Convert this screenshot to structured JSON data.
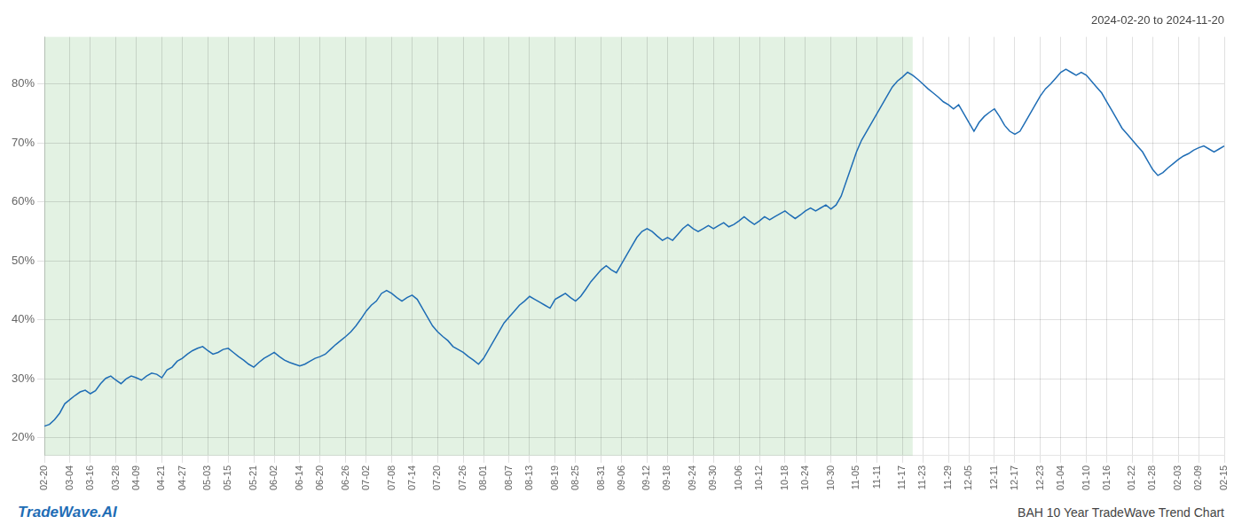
{
  "chart_data": {
    "type": "line",
    "title": "2024-02-20 to 2024-11-20",
    "annotations": [
      "TradeWave.AI",
      "BAH 10 Year TradeWave Trend Chart"
    ],
    "categories": [
      "02-20",
      null,
      null,
      null,
      null,
      "03-04",
      null,
      null,
      null,
      "03-16",
      null,
      null,
      null,
      null,
      "03-28",
      null,
      null,
      null,
      "04-09",
      null,
      null,
      null,
      null,
      "04-21",
      null,
      null,
      null,
      "04-27",
      null,
      null,
      null,
      null,
      "05-03",
      null,
      null,
      null,
      "05-15",
      null,
      null,
      null,
      null,
      "05-21",
      null,
      null,
      null,
      "06-02",
      null,
      null,
      null,
      null,
      "06-14",
      null,
      null,
      null,
      "06-20",
      null,
      null,
      null,
      null,
      "06-26",
      null,
      null,
      null,
      "07-02",
      null,
      null,
      null,
      null,
      "07-08",
      null,
      null,
      null,
      "07-14",
      null,
      null,
      null,
      null,
      "07-20",
      null,
      null,
      null,
      null,
      "07-26",
      null,
      null,
      null,
      "08-01",
      null,
      null,
      null,
      null,
      "08-07",
      null,
      null,
      null,
      "08-13",
      null,
      null,
      null,
      null,
      "08-19",
      null,
      null,
      null,
      "08-25",
      null,
      null,
      null,
      null,
      "08-31",
      null,
      null,
      null,
      "09-06",
      null,
      null,
      null,
      null,
      "09-12",
      null,
      null,
      null,
      "09-18",
      null,
      null,
      null,
      null,
      "09-24",
      null,
      null,
      null,
      "09-30",
      null,
      null,
      null,
      null,
      "10-06",
      null,
      null,
      null,
      "10-12",
      null,
      null,
      null,
      null,
      "10-18",
      null,
      null,
      null,
      "10-24",
      null,
      null,
      null,
      null,
      "10-30",
      null,
      null,
      null,
      null,
      "11-05",
      null,
      null,
      null,
      "11-11",
      null,
      null,
      null,
      null,
      "11-17",
      null,
      null,
      null,
      "11-23",
      null,
      null,
      null,
      null,
      "11-29",
      null,
      null,
      null,
      "12-05",
      null,
      null,
      null,
      null,
      "12-11",
      null,
      null,
      null,
      "12-17",
      null,
      null,
      null,
      null,
      "12-23",
      null,
      null,
      null,
      "01-04",
      null,
      null,
      null,
      null,
      "01-10",
      null,
      null,
      null,
      "01-16",
      null,
      null,
      null,
      null,
      "01-22",
      null,
      null,
      null,
      "01-28",
      null,
      null,
      null,
      null,
      "02-03",
      null,
      null,
      null,
      "02-09",
      null,
      null,
      null,
      null,
      "02-15"
    ],
    "values": [
      22.0,
      22.3,
      23.1,
      24.2,
      25.8,
      26.5,
      27.2,
      27.8,
      28.1,
      27.5,
      28.0,
      29.2,
      30.1,
      30.5,
      29.8,
      29.2,
      30.0,
      30.5,
      30.2,
      29.8,
      30.5,
      31.0,
      30.8,
      30.2,
      31.5,
      32.0,
      33.0,
      33.5,
      34.2,
      34.8,
      35.2,
      35.5,
      34.8,
      34.2,
      34.5,
      35.0,
      35.2,
      34.5,
      33.8,
      33.2,
      32.5,
      32.0,
      32.8,
      33.5,
      34.0,
      34.5,
      33.8,
      33.2,
      32.8,
      32.5,
      32.2,
      32.5,
      33.0,
      33.5,
      33.8,
      34.2,
      35.0,
      35.8,
      36.5,
      37.2,
      38.0,
      39.0,
      40.2,
      41.5,
      42.5,
      43.2,
      44.5,
      45.0,
      44.5,
      43.8,
      43.2,
      43.8,
      44.2,
      43.5,
      42.0,
      40.5,
      39.0,
      38.0,
      37.2,
      36.5,
      35.5,
      35.0,
      34.5,
      33.8,
      33.2,
      32.5,
      33.5,
      35.0,
      36.5,
      38.0,
      39.5,
      40.5,
      41.5,
      42.5,
      43.2,
      44.0,
      43.5,
      43.0,
      42.5,
      42.0,
      43.5,
      44.0,
      44.5,
      43.8,
      43.2,
      44.0,
      45.2,
      46.5,
      47.5,
      48.5,
      49.2,
      48.5,
      48.0,
      49.5,
      51.0,
      52.5,
      54.0,
      55.0,
      55.5,
      55.0,
      54.2,
      53.5,
      54.0,
      53.5,
      54.5,
      55.5,
      56.2,
      55.5,
      55.0,
      55.5,
      56.0,
      55.5,
      56.0,
      56.5,
      55.8,
      56.2,
      56.8,
      57.5,
      56.8,
      56.2,
      56.8,
      57.5,
      57.0,
      57.5,
      58.0,
      58.5,
      57.8,
      57.2,
      57.8,
      58.5,
      59.0,
      58.5,
      59.0,
      59.5,
      58.8,
      59.5,
      61.0,
      63.5,
      66.0,
      68.5,
      70.5,
      72.0,
      73.5,
      75.0,
      76.5,
      78.0,
      79.5,
      80.5,
      81.2,
      82.0,
      81.5,
      80.8,
      80.0,
      79.2,
      78.5,
      77.8,
      77.0,
      76.5,
      75.8,
      76.5,
      75.0,
      73.5,
      72.0,
      73.5,
      74.5,
      75.2,
      75.8,
      74.5,
      73.0,
      72.0,
      71.5,
      72.0,
      73.5,
      75.0,
      76.5,
      78.0,
      79.2,
      80.0,
      81.0,
      82.0,
      82.5,
      82.0,
      81.5,
      82.0,
      81.5,
      80.5,
      79.5,
      78.5,
      77.0,
      75.5,
      74.0,
      72.5,
      71.5,
      70.5,
      69.5,
      68.5,
      67.0,
      65.5,
      64.5,
      65.0,
      65.8,
      66.5,
      67.2,
      67.8,
      68.2,
      68.8,
      69.2,
      69.5,
      69.0,
      68.5,
      69.0,
      69.5
    ],
    "color": "#1f6db5",
    "ylim": [
      17,
      88
    ],
    "yticks": [
      {
        "value": 20,
        "label": "20%"
      },
      {
        "value": 30,
        "label": "30%"
      },
      {
        "value": 40,
        "label": "40%"
      },
      {
        "value": 50,
        "label": "50%"
      },
      {
        "value": 60,
        "label": "60%"
      },
      {
        "value": 70,
        "label": "70%"
      },
      {
        "value": 80,
        "label": "80%"
      }
    ],
    "grid": true,
    "shade_end": 170,
    "shade_color": "#cce8cc"
  }
}
